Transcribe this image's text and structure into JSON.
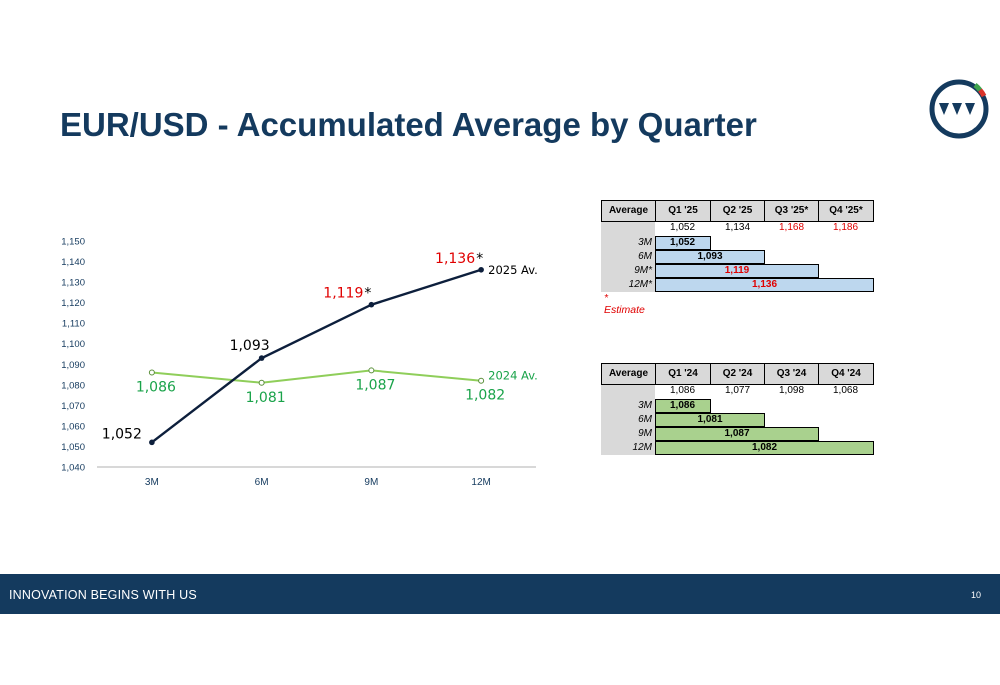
{
  "slide": {
    "title": "EUR/USD - Accumulated Average by Quarter",
    "footer_text": "INNOVATION BEGINS WITH US",
    "page_number": "10"
  },
  "colors": {
    "navy": "#143a5e",
    "series_2025": "#0d1f3c",
    "series_2024": "#8fce5a",
    "label_2024": "#1aa34a",
    "estimate_red": "#e00000",
    "bar_blue": "#bdd7ee",
    "bar_green": "#a9d18e"
  },
  "chart_data": {
    "type": "line",
    "categories": [
      "3M",
      "6M",
      "9M",
      "12M"
    ],
    "ylim": [
      1040,
      1150
    ],
    "yticks": [
      "1,040",
      "1,050",
      "1,060",
      "1,070",
      "1,080",
      "1,090",
      "1,100",
      "1,110",
      "1,120",
      "1,130",
      "1,140",
      "1,150"
    ],
    "grid": false,
    "series": [
      {
        "name": "2025 Av.",
        "values": [
          1052,
          1093,
          1119,
          1136
        ],
        "labels": [
          "1,052",
          "1,093",
          "1,119",
          "1,136"
        ],
        "estimate": [
          false,
          false,
          true,
          true
        ],
        "estimate_mark": "*"
      },
      {
        "name": "2024 Av.",
        "values": [
          1086,
          1081,
          1087,
          1082
        ],
        "labels": [
          "1,086",
          "1,081",
          "1,087",
          "1,082"
        ]
      }
    ]
  },
  "table_2025": {
    "corner": "Average",
    "columns": [
      "Q1 '25",
      "Q2 '25",
      "Q3 '25*",
      "Q4 '25*"
    ],
    "quarter_values": [
      "1,052",
      "1,134",
      "1,168",
      "1,186"
    ],
    "quarter_estimate": [
      false,
      false,
      true,
      true
    ],
    "rows": [
      {
        "label": "3M",
        "value": "1,052",
        "span": 1,
        "estimate": false
      },
      {
        "label": "6M",
        "value": "1,093",
        "span": 2,
        "estimate": false
      },
      {
        "label": "9M*",
        "value": "1,119",
        "span": 3,
        "estimate": true
      },
      {
        "label": "12M*",
        "value": "1,136",
        "span": 4,
        "estimate": true
      }
    ],
    "note": "* Estimate"
  },
  "table_2024": {
    "corner": "Average",
    "columns": [
      "Q1 '24",
      "Q2 '24",
      "Q3 '24",
      "Q4 '24"
    ],
    "quarter_values": [
      "1,086",
      "1,077",
      "1,098",
      "1,068"
    ],
    "rows": [
      {
        "label": "3M",
        "value": "1,086",
        "span": 1
      },
      {
        "label": "6M",
        "value": "1,081",
        "span": 2
      },
      {
        "label": "9M",
        "value": "1,087",
        "span": 3
      },
      {
        "label": "12M",
        "value": "1,082",
        "span": 4
      }
    ]
  }
}
